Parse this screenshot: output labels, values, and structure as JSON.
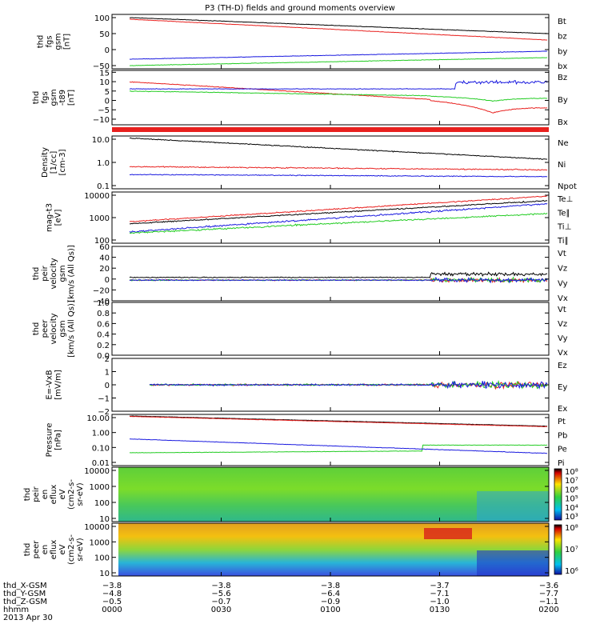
{
  "title": "P3 (TH-D) fields and ground moments overview",
  "colors": {
    "black": "#000000",
    "red": "#e8201e",
    "green": "#22cc22",
    "blue": "#1a1adf"
  },
  "chart_data": [
    {
      "type": "line",
      "id": "p1",
      "ylabel": [
        "thd",
        "fgs",
        "gsm",
        "[nT]"
      ],
      "yticks": [
        "100",
        "50",
        "0",
        "−50"
      ],
      "ylim": [
        -60,
        110
      ],
      "series": [
        {
          "name": "Bt",
          "color": "black",
          "values": [
            100,
            50
          ]
        },
        {
          "name": "bz",
          "color": "red",
          "values": [
            95,
            30
          ]
        },
        {
          "name": "by",
          "color": "green",
          "values": [
            -50,
            -25
          ]
        },
        {
          "name": "bx",
          "color": "blue",
          "values": [
            -30,
            -5
          ]
        }
      ]
    },
    {
      "type": "line",
      "id": "p2",
      "ylabel": [
        "thd",
        "fgs",
        "gsm",
        "-t89",
        "[nT]"
      ],
      "yticks": [
        "15",
        "10",
        "5",
        "0",
        "−5",
        "−10"
      ],
      "ylim": [
        -13,
        16
      ],
      "series": [
        {
          "name": "Bz",
          "color": "red"
        },
        {
          "name": "By",
          "color": "green"
        },
        {
          "name": "Bx",
          "color": "blue"
        }
      ]
    },
    {
      "type": "line",
      "id": "p3",
      "ylabel": [
        "Density",
        "[1/cc]",
        "[cm-3]"
      ],
      "yticks": [
        "10.0",
        "1.0",
        "0.1"
      ],
      "log": true,
      "series": [
        {
          "name": "Ne",
          "color": "red"
        },
        {
          "name": "Ni",
          "color": "black"
        },
        {
          "name": "Npot",
          "color": "blue"
        }
      ]
    },
    {
      "type": "line",
      "id": "p4",
      "ylabel": [
        "mag-t3",
        "[eV]"
      ],
      "yticks": [
        "10000",
        "1000",
        "100"
      ],
      "log": true,
      "series": [
        {
          "name": "Te⊥",
          "color": "red"
        },
        {
          "name": "Te∥",
          "color": "black"
        },
        {
          "name": "Ti⊥",
          "color": "blue"
        },
        {
          "name": "Ti∥",
          "color": "green"
        }
      ]
    },
    {
      "type": "line",
      "id": "p5",
      "ylabel": [
        "thd",
        "peir",
        "velocity",
        "gsm",
        "[km/s (All Qs)]"
      ],
      "yticks": [
        "60",
        "40",
        "20",
        "0",
        "−20",
        "−40"
      ],
      "ylim": [
        -40,
        60
      ],
      "series": [
        {
          "name": "Vt",
          "color": "black"
        },
        {
          "name": "Vz",
          "color": "red"
        },
        {
          "name": "Vy",
          "color": "green"
        },
        {
          "name": "Vx",
          "color": "blue"
        }
      ]
    },
    {
      "type": "line",
      "id": "p6",
      "ylabel": [
        "thd",
        "peer",
        "velocity",
        "gsm",
        "[km/s (All Qs)]"
      ],
      "yticks": [
        "1.0",
        "0.8",
        "0.6",
        "0.4",
        "0.2",
        "0.0"
      ],
      "ylim": [
        0,
        1
      ],
      "series": [
        {
          "name": "Vt",
          "color": "black"
        },
        {
          "name": "Vz",
          "color": "red"
        },
        {
          "name": "Vy",
          "color": "green"
        },
        {
          "name": "Vx",
          "color": "blue"
        }
      ]
    },
    {
      "type": "line",
      "id": "p7",
      "ylabel": [
        "E=-VxB",
        "[mV/m]"
      ],
      "yticks": [
        "2",
        "1",
        "0",
        "−1",
        "−2"
      ],
      "ylim": [
        -2,
        2
      ],
      "series": [
        {
          "name": "Ez",
          "color": "red"
        },
        {
          "name": "Ey",
          "color": "green"
        },
        {
          "name": "Ex",
          "color": "blue"
        }
      ]
    },
    {
      "type": "line",
      "id": "p8",
      "ylabel": [
        "Pressure",
        "[nPa]"
      ],
      "yticks": [
        "10.00",
        "1.00",
        "0.10",
        "0.01"
      ],
      "log": true,
      "series": [
        {
          "name": "Pt",
          "color": "black"
        },
        {
          "name": "Pb",
          "color": "red"
        },
        {
          "name": "Pe",
          "color": "green"
        },
        {
          "name": "Pi",
          "color": "blue"
        }
      ]
    },
    {
      "type": "heatmap",
      "id": "p9",
      "ylabel": [
        "thd",
        "peir",
        "en",
        "eflux",
        "eV",
        "(cm2-s-",
        "sr-eV)"
      ],
      "yticks": [
        "10000",
        "1000",
        "100",
        "10"
      ],
      "colorbar": [
        "10⁸",
        "10⁷",
        "10⁶",
        "10⁵",
        "10⁴",
        "10³"
      ]
    },
    {
      "type": "heatmap",
      "id": "p10",
      "ylabel": [
        "thd",
        "peer",
        "en",
        "eflux",
        "eV",
        "(cm2-s-",
        "sr-eV)"
      ],
      "yticks": [
        "10000",
        "1000",
        "100",
        "10"
      ],
      "colorbar": [
        "10⁸",
        "10⁷",
        "10⁶"
      ]
    }
  ],
  "xaxis": {
    "rows": [
      {
        "label": "thd_X-GSM",
        "values": [
          "−3.8",
          "−3.8",
          "−3.8",
          "−3.7",
          "−3.6"
        ]
      },
      {
        "label": "thd_Y-GSM",
        "values": [
          "−4.8",
          "−5.6",
          "−6.4",
          "−7.1",
          "−7.7"
        ]
      },
      {
        "label": "thd_Z-GSM",
        "values": [
          "−0.5",
          "−0.7",
          "−0.9",
          "−1.0",
          "−1.1"
        ]
      },
      {
        "label": "hhmm",
        "values": [
          "0000",
          "0030",
          "0100",
          "0130",
          "0200"
        ]
      }
    ],
    "date": "2013 Apr 30"
  }
}
